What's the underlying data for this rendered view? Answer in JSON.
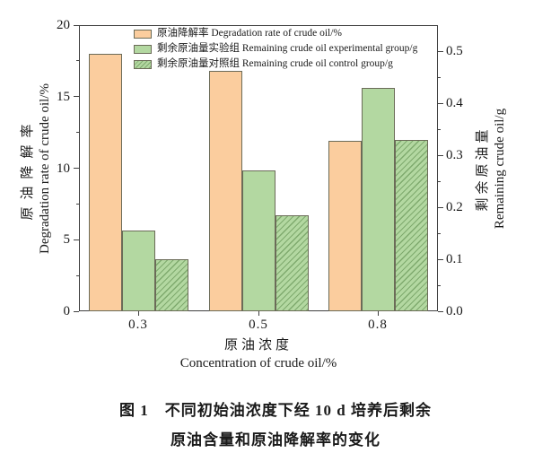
{
  "figure": {
    "caption_line1": "图 1　不同初始油浓度下经 10 d 培养后剩余",
    "caption_line2": "原油含量和原油降解率的变化"
  },
  "chart_data": {
    "type": "bar",
    "categories": [
      "0.3",
      "0.5",
      "0.8"
    ],
    "series": [
      {
        "key": "degradation-rate",
        "label": "原油降解率 Degradation rate of crude oil/%",
        "axis": "left",
        "style": "solid",
        "fill": "#FBCD9E",
        "values": [
          18.0,
          16.8,
          11.9
        ]
      },
      {
        "key": "remaining-oil-experimental",
        "label": "剩余原油量实验组 Remaining crude oil experimental group/g",
        "axis": "right",
        "style": "solid",
        "fill": "#B3D8A1",
        "values": [
          0.155,
          0.27,
          0.43
        ]
      },
      {
        "key": "remaining-oil-control",
        "label": "剩余原油量对照组 Remaining crude oil control group/g",
        "axis": "right",
        "style": "hatched",
        "fill": "#B3D8A1",
        "values": [
          0.1,
          0.185,
          0.33
        ]
      }
    ],
    "left_axis": {
      "title_zh": "原油降解率",
      "title_en": "Degradation rate of crude oil/%",
      "range": [
        0,
        20
      ],
      "major_ticks": [
        0,
        5,
        10,
        15,
        20
      ],
      "minor_ticks": [
        2.5,
        7.5,
        12.5,
        17.5
      ]
    },
    "right_axis": {
      "title_zh": "剩余原油量",
      "title_en": "Remaining crude oil/g",
      "range": [
        0,
        0.55
      ],
      "major_ticks": [
        "0.0",
        "0.1",
        "0.2",
        "0.3",
        "0.4",
        "0.5"
      ],
      "minor_ticks": [
        0.05,
        0.15,
        0.25,
        0.35,
        0.45
      ]
    },
    "x_axis": {
      "title_zh": "原油浓度",
      "title_en": "Concentration of crude oil/%"
    },
    "legend_position": "top-inside",
    "grid": false,
    "colors": {
      "bar_edge": "#6B6B58",
      "hatch_line": "#7FAA6E",
      "axis_line": "#3F3F3F",
      "text": "#1a1a1a"
    }
  }
}
